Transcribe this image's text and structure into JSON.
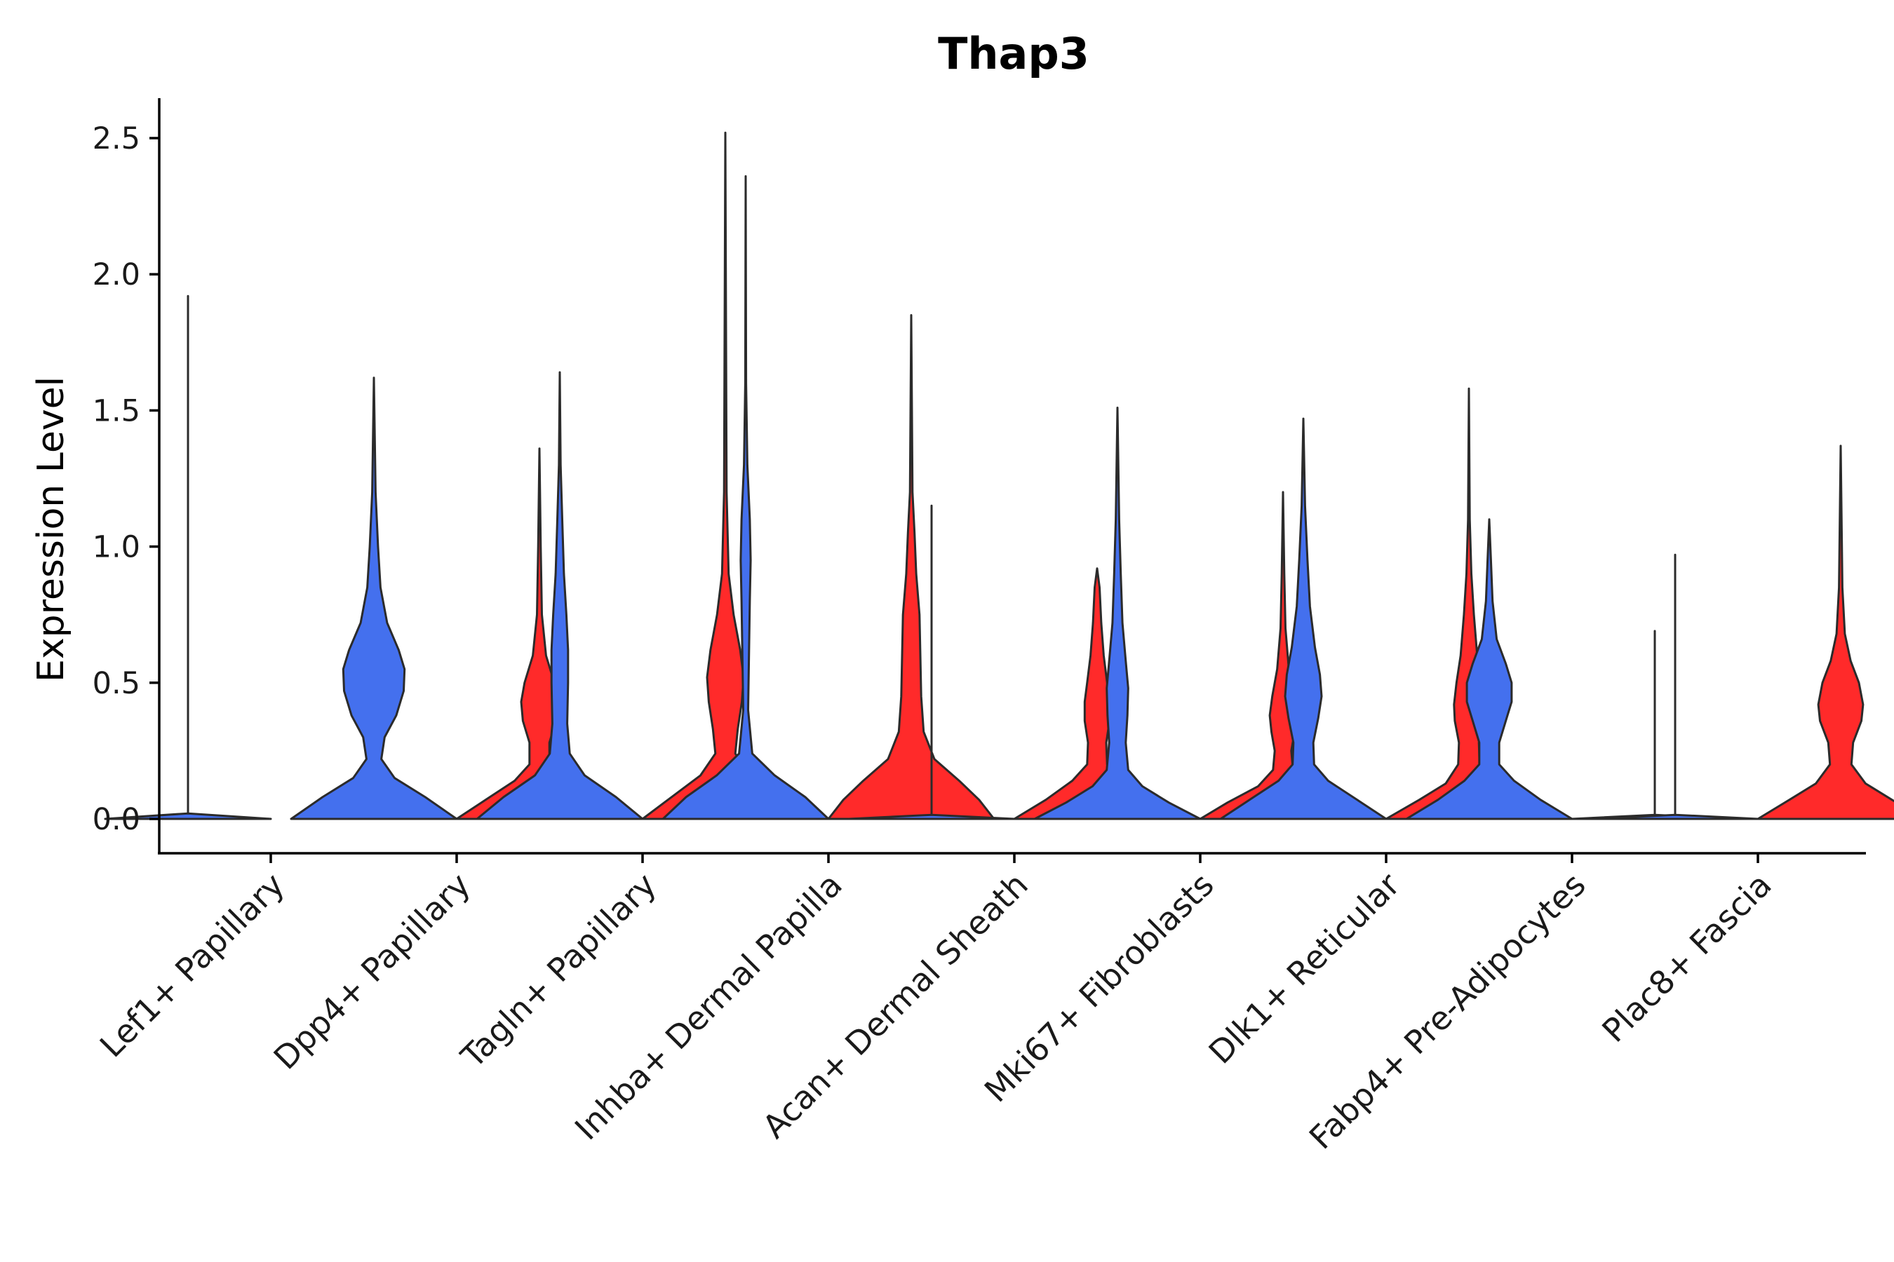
{
  "chart_data": {
    "type": "violin",
    "title": "Thap3",
    "xlabel": "",
    "ylabel": "Expression Level",
    "ylim": [
      -0.12,
      2.65
    ],
    "yticks": [
      "0.0",
      "0.5",
      "1.0",
      "1.5",
      "2.0",
      "2.5"
    ],
    "split": true,
    "grid": false,
    "legend": "none",
    "series_colors": {
      "group1": "#4470EE",
      "group2": "#FF2A2A"
    },
    "categories": [
      "Lef1+ Papillary",
      "Dpp4+ Papillary",
      "Tagln+ Papillary",
      "Inhba+ Dermal Papilla",
      "Acan+ Dermal Sheath",
      "Mki67+ Fibroblasts",
      "Dlk1+ Reticular",
      "Fabp4+ Pre-Adipocytes",
      "Plac8+ Fascia"
    ],
    "violins": [
      {
        "category": "Lef1+ Papillary",
        "max": 1.92,
        "color": "#4470EE",
        "density": [
          [
            0,
            1.0
          ],
          [
            0.02,
            0.0
          ]
        ]
      },
      {
        "category": "Dpp4+ Papillary",
        "max": 1.62,
        "color": "#4470EE",
        "density": [
          [
            0,
            1.0
          ],
          [
            0.08,
            0.62
          ],
          [
            0.15,
            0.25
          ],
          [
            0.22,
            0.09
          ],
          [
            0.3,
            0.13
          ],
          [
            0.38,
            0.27
          ],
          [
            0.47,
            0.36
          ],
          [
            0.55,
            0.37
          ],
          [
            0.62,
            0.3
          ],
          [
            0.72,
            0.16
          ],
          [
            0.85,
            0.08
          ],
          [
            1.0,
            0.05
          ],
          [
            1.2,
            0.02
          ],
          [
            1.62,
            0.0
          ]
        ]
      },
      {
        "category": "Dpp4+ Papillary",
        "max": 1.36,
        "color": "#FF2A2A",
        "density": [
          [
            0,
            1.0
          ],
          [
            0.07,
            0.65
          ],
          [
            0.14,
            0.3
          ],
          [
            0.2,
            0.12
          ],
          [
            0.28,
            0.12
          ],
          [
            0.36,
            0.2
          ],
          [
            0.43,
            0.22
          ],
          [
            0.5,
            0.18
          ],
          [
            0.6,
            0.08
          ],
          [
            0.75,
            0.03
          ],
          [
            1.0,
            0.015
          ],
          [
            1.36,
            0.0
          ]
        ]
      },
      {
        "category": "Tagln+ Papillary",
        "max": 1.64,
        "color": "#4470EE",
        "density": [
          [
            0,
            1.0
          ],
          [
            0.08,
            0.68
          ],
          [
            0.16,
            0.3
          ],
          [
            0.24,
            0.12
          ],
          [
            0.35,
            0.09
          ],
          [
            0.5,
            0.1
          ],
          [
            0.62,
            0.1
          ],
          [
            0.75,
            0.08
          ],
          [
            0.9,
            0.05
          ],
          [
            1.1,
            0.03
          ],
          [
            1.3,
            0.01
          ],
          [
            1.64,
            0.0
          ]
        ]
      },
      {
        "category": "Tagln+ Papillary",
        "max": 2.52,
        "color": "#FF2A2A",
        "density": [
          [
            0,
            1.0
          ],
          [
            0.08,
            0.65
          ],
          [
            0.16,
            0.3
          ],
          [
            0.24,
            0.12
          ],
          [
            0.33,
            0.15
          ],
          [
            0.43,
            0.2
          ],
          [
            0.52,
            0.22
          ],
          [
            0.62,
            0.18
          ],
          [
            0.75,
            0.1
          ],
          [
            0.9,
            0.04
          ],
          [
            1.2,
            0.015
          ],
          [
            2.52,
            0.0
          ]
        ]
      },
      {
        "category": "Inhba+ Dermal Papilla",
        "max": 2.36,
        "color": "#4470EE",
        "density": [
          [
            0,
            1.0
          ],
          [
            0.08,
            0.72
          ],
          [
            0.16,
            0.35
          ],
          [
            0.24,
            0.08
          ],
          [
            0.4,
            0.03
          ],
          [
            0.6,
            0.04
          ],
          [
            0.8,
            0.05
          ],
          [
            0.95,
            0.06
          ],
          [
            1.1,
            0.05
          ],
          [
            1.3,
            0.02
          ],
          [
            1.6,
            0.005
          ],
          [
            2.36,
            0.0
          ]
        ]
      },
      {
        "category": "Inhba+ Dermal Papilla",
        "max": 1.85,
        "color": "#FF2A2A",
        "density": [
          [
            0,
            1.0
          ],
          [
            0.07,
            0.82
          ],
          [
            0.14,
            0.58
          ],
          [
            0.22,
            0.28
          ],
          [
            0.32,
            0.15
          ],
          [
            0.45,
            0.12
          ],
          [
            0.6,
            0.11
          ],
          [
            0.75,
            0.1
          ],
          [
            0.9,
            0.06
          ],
          [
            1.05,
            0.04
          ],
          [
            1.2,
            0.015
          ],
          [
            1.85,
            0.0
          ]
        ]
      },
      {
        "category": "Acan+ Dermal Sheath",
        "max": 1.15,
        "color": "#4470EE",
        "density": [
          [
            0,
            1.0
          ],
          [
            0.015,
            0.0
          ]
        ]
      },
      {
        "category": "Acan+ Dermal Sheath",
        "max": 0.92,
        "color": "#FF2A2A",
        "density": [
          [
            0,
            1.0
          ],
          [
            0.07,
            0.62
          ],
          [
            0.14,
            0.3
          ],
          [
            0.2,
            0.12
          ],
          [
            0.28,
            0.11
          ],
          [
            0.36,
            0.15
          ],
          [
            0.43,
            0.15
          ],
          [
            0.5,
            0.12
          ],
          [
            0.6,
            0.08
          ],
          [
            0.72,
            0.05
          ],
          [
            0.85,
            0.03
          ],
          [
            0.92,
            0.0
          ]
        ]
      },
      {
        "category": "Mki67+ Fibroblasts",
        "max": 1.51,
        "color": "#4470EE",
        "density": [
          [
            0,
            1.0
          ],
          [
            0.06,
            0.62
          ],
          [
            0.12,
            0.3
          ],
          [
            0.18,
            0.13
          ],
          [
            0.28,
            0.1
          ],
          [
            0.38,
            0.12
          ],
          [
            0.48,
            0.13
          ],
          [
            0.58,
            0.1
          ],
          [
            0.72,
            0.06
          ],
          [
            0.9,
            0.04
          ],
          [
            1.1,
            0.02
          ],
          [
            1.51,
            0.0
          ]
        ]
      },
      {
        "category": "Mki67+ Fibroblasts",
        "max": 1.2,
        "color": "#FF2A2A",
        "density": [
          [
            0,
            1.0
          ],
          [
            0.06,
            0.67
          ],
          [
            0.12,
            0.3
          ],
          [
            0.18,
            0.12
          ],
          [
            0.25,
            0.1
          ],
          [
            0.32,
            0.14
          ],
          [
            0.38,
            0.16
          ],
          [
            0.45,
            0.13
          ],
          [
            0.55,
            0.07
          ],
          [
            0.7,
            0.03
          ],
          [
            0.9,
            0.015
          ],
          [
            1.2,
            0.0
          ]
        ]
      },
      {
        "category": "Dlk1+ Reticular",
        "max": 1.47,
        "color": "#4470EE",
        "density": [
          [
            0,
            1.0
          ],
          [
            0.07,
            0.65
          ],
          [
            0.14,
            0.3
          ],
          [
            0.2,
            0.13
          ],
          [
            0.28,
            0.12
          ],
          [
            0.37,
            0.18
          ],
          [
            0.45,
            0.22
          ],
          [
            0.53,
            0.2
          ],
          [
            0.63,
            0.14
          ],
          [
            0.78,
            0.08
          ],
          [
            0.95,
            0.05
          ],
          [
            1.15,
            0.02
          ],
          [
            1.47,
            0.0
          ]
        ]
      },
      {
        "category": "Dlk1+ Reticular",
        "max": 1.58,
        "color": "#FF2A2A",
        "density": [
          [
            0,
            1.0
          ],
          [
            0.07,
            0.6
          ],
          [
            0.13,
            0.28
          ],
          [
            0.2,
            0.13
          ],
          [
            0.28,
            0.12
          ],
          [
            0.36,
            0.17
          ],
          [
            0.42,
            0.18
          ],
          [
            0.5,
            0.15
          ],
          [
            0.6,
            0.1
          ],
          [
            0.75,
            0.06
          ],
          [
            0.9,
            0.03
          ],
          [
            1.1,
            0.01
          ],
          [
            1.58,
            0.0
          ]
        ]
      },
      {
        "category": "Fabp4+ Pre-Adipocytes",
        "max": 1.1,
        "color": "#4470EE",
        "density": [
          [
            0,
            1.0
          ],
          [
            0.07,
            0.62
          ],
          [
            0.14,
            0.3
          ],
          [
            0.2,
            0.12
          ],
          [
            0.28,
            0.12
          ],
          [
            0.36,
            0.2
          ],
          [
            0.43,
            0.27
          ],
          [
            0.5,
            0.27
          ],
          [
            0.57,
            0.2
          ],
          [
            0.66,
            0.09
          ],
          [
            0.8,
            0.04
          ],
          [
            0.95,
            0.02
          ],
          [
            1.1,
            0.0
          ]
        ]
      },
      {
        "category": "Fabp4+ Pre-Adipocytes",
        "max": 0.69,
        "color": "#FF2A2A",
        "density": [
          [
            0,
            1.0
          ],
          [
            0.015,
            0.0
          ]
        ]
      },
      {
        "category": "Plac8+ Fascia",
        "max": 0.97,
        "color": "#4470EE",
        "density": [
          [
            0,
            1.0
          ],
          [
            0.015,
            0.0
          ]
        ]
      },
      {
        "category": "Plac8+ Fascia",
        "max": 1.37,
        "color": "#FF2A2A",
        "density": [
          [
            0,
            1.0
          ],
          [
            0.07,
            0.62
          ],
          [
            0.13,
            0.3
          ],
          [
            0.2,
            0.13
          ],
          [
            0.28,
            0.15
          ],
          [
            0.36,
            0.25
          ],
          [
            0.42,
            0.27
          ],
          [
            0.5,
            0.22
          ],
          [
            0.58,
            0.12
          ],
          [
            0.68,
            0.05
          ],
          [
            0.85,
            0.02
          ],
          [
            1.37,
            0.0
          ]
        ]
      }
    ]
  }
}
